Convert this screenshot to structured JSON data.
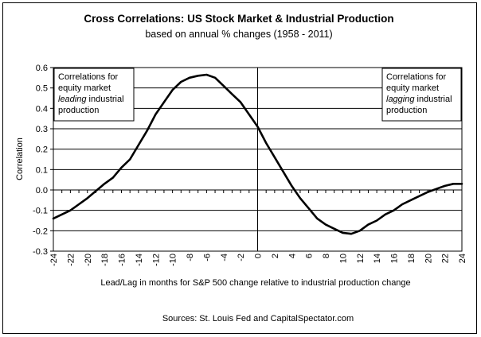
{
  "chart_data": {
    "type": "line",
    "title": "Cross Correlations: US Stock Market & Industrial Production",
    "subtitle": "based on annual % changes (1958 - 2011)",
    "xlabel": "Lead/Lag in months for S&P 500 change relative to industrial production change",
    "ylabel": "Correlation",
    "source": "Sources:  St. Louis Fed and CapitalSpectator.com",
    "xlim": [
      -24,
      24
    ],
    "ylim": [
      -0.3,
      0.6
    ],
    "x_ticks": [
      "-24",
      "-22",
      "-20",
      "-18",
      "-16",
      "-14",
      "-12",
      "-10",
      "-8",
      "-6",
      "-4",
      "-2",
      "0",
      "2",
      "4",
      "6",
      "8",
      "10",
      "12",
      "14",
      "16",
      "18",
      "20",
      "22",
      "24"
    ],
    "y_ticks": [
      "0.6",
      "0.5",
      "0.4",
      "0.3",
      "0.2",
      "0.1",
      "0.0",
      "-0.1",
      "-0.2",
      "-0.3"
    ],
    "grid": true,
    "annotation_left": [
      "Correlations for",
      "equity market",
      "leading",
      " industrial",
      "production"
    ],
    "annotation_right": [
      "Correlations for",
      "equity market",
      "lagging",
      " industrial",
      "production"
    ],
    "series": [
      {
        "color": "#000000",
        "x": [
          -24,
          -23,
          -22,
          -21,
          -20,
          -19,
          -18,
          -17,
          -16,
          -15,
          -14,
          -13,
          -12,
          -11,
          -10,
          -9,
          -8,
          -7,
          -6,
          -5,
          -4,
          -3,
          -2,
          -1,
          0,
          1,
          2,
          3,
          4,
          5,
          6,
          7,
          8,
          9,
          10,
          11,
          12,
          13,
          14,
          15,
          16,
          17,
          18,
          19,
          20,
          21,
          22,
          23,
          24
        ],
        "values": [
          -0.14,
          -0.12,
          -0.1,
          -0.07,
          -0.04,
          -0.005,
          0.03,
          0.06,
          0.11,
          0.15,
          0.22,
          0.29,
          0.37,
          0.43,
          0.49,
          0.53,
          0.55,
          0.56,
          0.565,
          0.55,
          0.51,
          0.47,
          0.43,
          0.37,
          0.31,
          0.23,
          0.16,
          0.09,
          0.02,
          -0.04,
          -0.09,
          -0.14,
          -0.17,
          -0.19,
          -0.21,
          -0.215,
          -0.2,
          -0.17,
          -0.15,
          -0.12,
          -0.1,
          -0.07,
          -0.05,
          -0.03,
          -0.01,
          0.005,
          0.02,
          0.03,
          0.03
        ]
      }
    ]
  }
}
